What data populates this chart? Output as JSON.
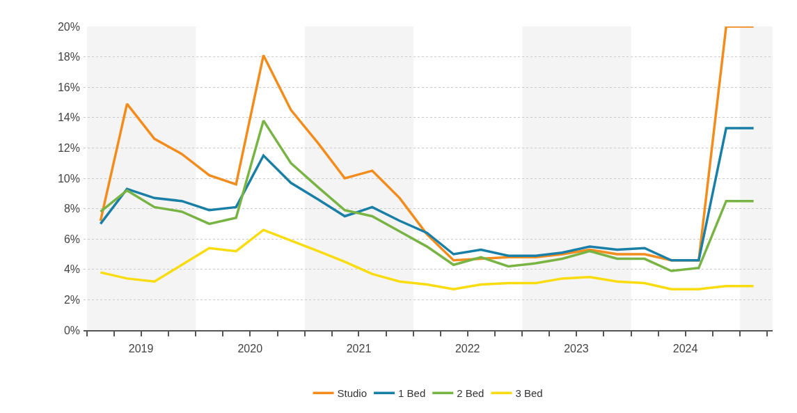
{
  "chart_data": {
    "type": "line",
    "x": [
      "2019-02-15",
      "2019-05-15",
      "2019-08-15",
      "2019-11-15",
      "2020-02-15",
      "2020-05-15",
      "2020-08-15",
      "2020-11-15",
      "2021-02-15",
      "2021-05-15",
      "2021-08-15",
      "2021-11-15",
      "2022-02-15",
      "2022-05-15",
      "2022-08-15",
      "2022-11-15",
      "2023-02-15",
      "2023-05-15",
      "2023-08-15",
      "2023-11-15",
      "2024-02-15",
      "2024-05-15",
      "2024-08-15",
      "2024-11-15",
      "2025-02-15"
    ],
    "series": [
      {
        "name": "Studio",
        "color": "#f28c1c",
        "values": [
          7.2,
          14.9,
          12.6,
          11.6,
          10.2,
          9.6,
          18.1,
          14.5,
          12.3,
          10.0,
          10.5,
          8.7,
          6.3,
          4.6,
          4.7,
          4.8,
          4.8,
          5.0,
          5.3,
          5.0,
          5.0,
          4.6,
          4.6,
          20.0,
          20.0
        ]
      },
      {
        "name": "1 Bed",
        "color": "#1a7fa6",
        "values": [
          7.0,
          9.3,
          8.7,
          8.5,
          7.9,
          8.1,
          11.5,
          9.7,
          8.6,
          7.5,
          8.1,
          7.2,
          6.4,
          5.0,
          5.3,
          4.9,
          4.9,
          5.1,
          5.5,
          5.3,
          5.4,
          4.6,
          4.6,
          13.3,
          13.3
        ]
      },
      {
        "name": "2 Bed",
        "color": "#78b444",
        "values": [
          7.8,
          9.2,
          8.1,
          7.8,
          7.0,
          7.4,
          13.8,
          11.0,
          9.4,
          7.9,
          7.5,
          6.5,
          5.5,
          4.3,
          4.8,
          4.2,
          4.4,
          4.7,
          5.2,
          4.7,
          4.7,
          3.9,
          4.1,
          8.5,
          8.5
        ]
      },
      {
        "name": "3 Bed",
        "color": "#f9dc0f",
        "values": [
          3.8,
          3.4,
          3.2,
          4.3,
          5.4,
          5.2,
          6.6,
          5.9,
          5.2,
          4.5,
          3.7,
          3.2,
          3.0,
          2.7,
          3.0,
          3.1,
          3.1,
          3.4,
          3.5,
          3.2,
          3.1,
          2.7,
          2.7,
          2.9,
          2.9
        ]
      }
    ],
    "xlim": [
      "2018-12-20",
      "2025-04-20"
    ],
    "xticks": [
      {
        "value": "2019-01-01",
        "label": null
      },
      {
        "value": "2019-04-01",
        "label": null
      },
      {
        "value": "2019-07-01",
        "label": "2019"
      },
      {
        "value": "2019-10-01",
        "label": null
      },
      {
        "value": "2020-01-01",
        "label": null
      },
      {
        "value": "2020-04-01",
        "label": null
      },
      {
        "value": "2020-07-01",
        "label": "2020"
      },
      {
        "value": "2020-10-01",
        "label": null
      },
      {
        "value": "2021-01-01",
        "label": null
      },
      {
        "value": "2021-04-01",
        "label": null
      },
      {
        "value": "2021-07-01",
        "label": "2021"
      },
      {
        "value": "2021-10-01",
        "label": null
      },
      {
        "value": "2022-01-01",
        "label": null
      },
      {
        "value": "2022-04-01",
        "label": null
      },
      {
        "value": "2022-07-01",
        "label": "2022"
      },
      {
        "value": "2022-10-01",
        "label": null
      },
      {
        "value": "2023-01-01",
        "label": null
      },
      {
        "value": "2023-04-01",
        "label": null
      },
      {
        "value": "2023-07-01",
        "label": "2023"
      },
      {
        "value": "2023-10-01",
        "label": null
      },
      {
        "value": "2024-01-01",
        "label": null
      },
      {
        "value": "2024-04-01",
        "label": null
      },
      {
        "value": "2024-07-01",
        "label": "2024"
      },
      {
        "value": "2024-10-01",
        "label": null
      },
      {
        "value": "2025-01-01",
        "label": null
      },
      {
        "value": "2025-04-01",
        "label": null
      }
    ],
    "ylim": [
      0,
      20
    ],
    "yticks": [
      {
        "value": 0,
        "label": "0%"
      },
      {
        "value": 2,
        "label": "2%"
      },
      {
        "value": 4,
        "label": "4%"
      },
      {
        "value": 6,
        "label": "6%"
      },
      {
        "value": 8,
        "label": "8%"
      },
      {
        "value": 10,
        "label": "10%"
      },
      {
        "value": 12,
        "label": "12%"
      },
      {
        "value": 14,
        "label": "14%"
      },
      {
        "value": 16,
        "label": "16%"
      },
      {
        "value": 18,
        "label": "18%"
      },
      {
        "value": 20,
        "label": "20%"
      }
    ],
    "bands": [
      {
        "axis": "x",
        "from": "2019-01-01",
        "to": "2020-01-01",
        "color": "#f4f4f4"
      },
      {
        "axis": "x",
        "from": "2021-01-01",
        "to": "2022-01-01",
        "color": "#f4f4f4"
      },
      {
        "axis": "x",
        "from": "2023-01-01",
        "to": "2024-01-01",
        "color": "#f4f4f4"
      },
      {
        "axis": "x",
        "from": "2025-01-01",
        "to": "2025-04-20",
        "color": "#f4f4f4"
      }
    ],
    "grid": "y",
    "legend": "bottom",
    "marker": "none",
    "line_style": "solid"
  }
}
